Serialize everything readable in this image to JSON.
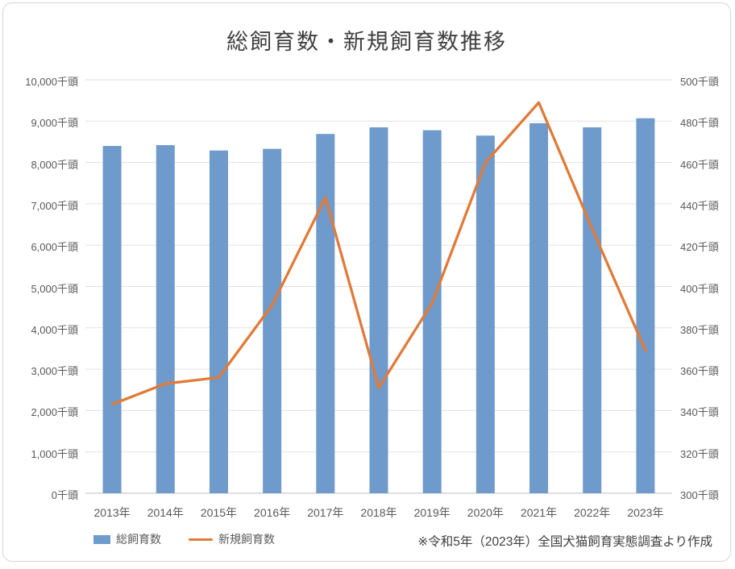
{
  "chart_data": {
    "type": "bar",
    "subtype": "bar+line dual axis",
    "title": "総飼育数・新規飼育数推移",
    "categories": [
      "2013年",
      "2014年",
      "2015年",
      "2016年",
      "2017年",
      "2018年",
      "2019年",
      "2020年",
      "2021年",
      "2022年",
      "2023年"
    ],
    "series": [
      {
        "name": "総飼育数",
        "type": "bar",
        "axis": "left",
        "color": "#6E9BCB",
        "values": [
          8400,
          8420,
          8290,
          8330,
          8690,
          8850,
          8780,
          8650,
          8950,
          8850,
          9070
        ]
      },
      {
        "name": "新規飼育数",
        "type": "line",
        "axis": "right",
        "color": "#E07B39",
        "values": [
          343,
          353,
          356,
          391,
          443,
          351,
          392,
          460,
          489,
          428,
          369
        ]
      }
    ],
    "left_axis": {
      "min": 0,
      "max": 10000,
      "step": 1000,
      "suffix": "千頭"
    },
    "right_axis": {
      "min": 300,
      "max": 500,
      "step": 20,
      "suffix": "千頭"
    },
    "grid": true,
    "legend_position": "bottom-left",
    "footnote": "※令和5年（2023年）全国犬猫飼育実態調査より作成"
  },
  "colors": {
    "gridline": "#e2e2e2",
    "axis_line": "#bfbfbf",
    "tick_text": "#595959",
    "title_text": "#3f3f3f"
  }
}
